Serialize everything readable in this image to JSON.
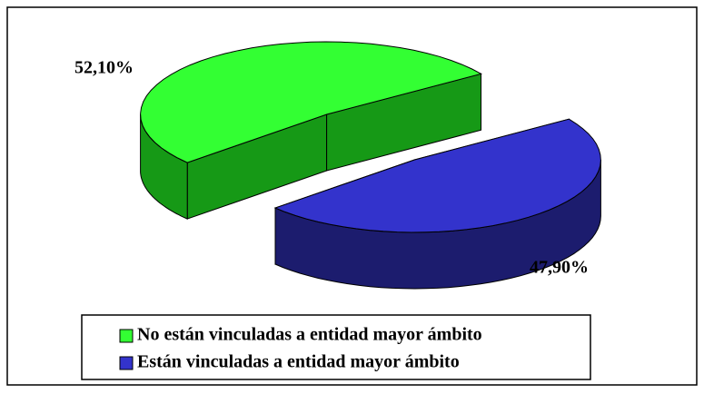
{
  "chart_data": {
    "type": "pie",
    "categories": [
      "No están vinculadas a entidad mayor ámbito",
      "Están vinculadas a entidad mayor ámbito"
    ],
    "values": [
      52.1,
      47.9
    ],
    "value_labels": [
      "52,10%",
      "47,90%"
    ],
    "colors": [
      "#33ff33",
      "#3333cc"
    ],
    "side_colors": [
      "#169916",
      "#1c1c6e"
    ]
  }
}
